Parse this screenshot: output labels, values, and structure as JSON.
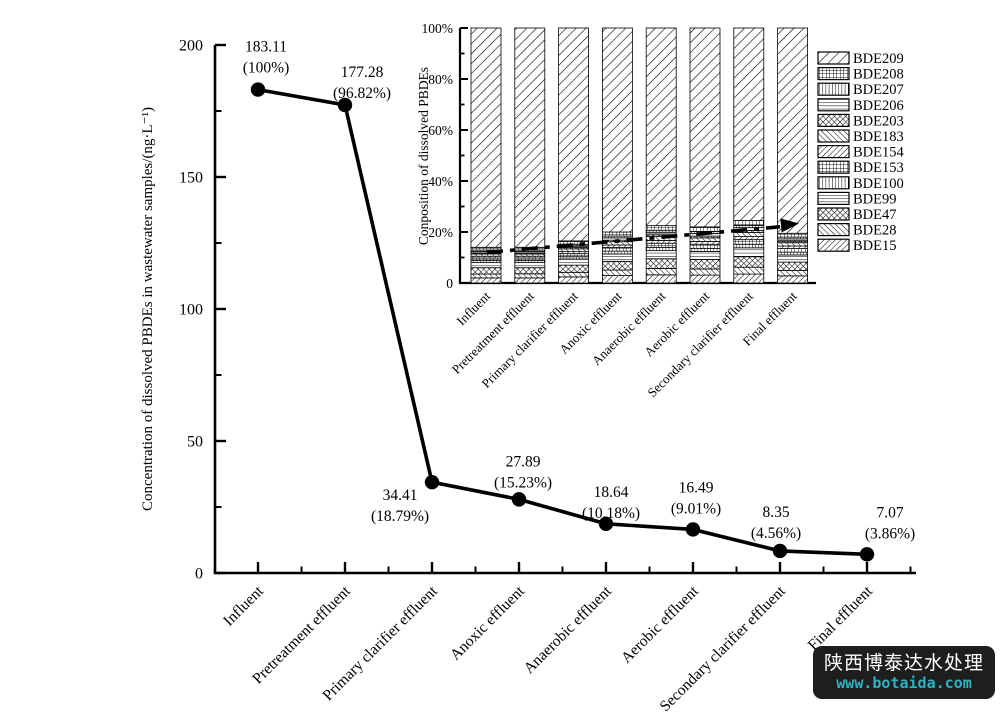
{
  "watermark": {
    "text": "陕西博泰达水处理",
    "url": "www.botaida.com",
    "background": "#1e1e1e",
    "text_color": "#ffffff",
    "url_color": "#2bb5c4"
  },
  "chart_data": [
    {
      "type": "line",
      "title": "",
      "ylabel": "Concentration of dissolved PBDEs in wastewater samples/(ng·L⁻¹)",
      "xlabel": "",
      "ylim": [
        0,
        200
      ],
      "yticks": [
        0,
        50,
        100,
        150,
        200
      ],
      "minor_ytick_step": 25,
      "grid": false,
      "line_color": "#000000",
      "marker": "filled-circle",
      "categories": [
        "Influent",
        "Pretreatment effluent",
        "Primary clarifier effluent",
        "Anoxic effluent",
        "Anaerobic effluent",
        "Aerobic effluent",
        "Secondary clarifier effluent",
        "Final effluent"
      ],
      "values": [
        183.11,
        177.28,
        34.41,
        27.89,
        18.64,
        16.49,
        8.35,
        7.07
      ],
      "point_labels": [
        {
          "value": "183.11",
          "percent": "(100%)"
        },
        {
          "value": "177.28",
          "percent": "(96.82%)"
        },
        {
          "value": "34.41",
          "percent": "(18.79%)"
        },
        {
          "value": "27.89",
          "percent": "(15.23%)"
        },
        {
          "value": "18.64",
          "percent": "(10.18%)"
        },
        {
          "value": "16.49",
          "percent": "(9.01%)"
        },
        {
          "value": "8.35",
          "percent": "(4.56%)"
        },
        {
          "value": "7.07",
          "percent": "(3.86%)"
        }
      ]
    },
    {
      "type": "stacked-bar-percent",
      "title": "",
      "ylabel": "Conposition of dissolved PBDEs",
      "ylim_percent": [
        0,
        100
      ],
      "ytick_labels": [
        "0",
        "20%",
        "40%",
        "60%",
        "80%",
        "100%"
      ],
      "minor_ytick_step_percent": 10,
      "grid": false,
      "bar_fill": "black-hatch-patterns-on-white",
      "categories": [
        "Influent",
        "Pretreatment effluent",
        "Primary clarifier effluent",
        "Anoxic effluent",
        "Anaerobic effluent",
        "Aerobic effluent",
        "Secondary clarifier effluent",
        "Final effluent"
      ],
      "series": [
        {
          "name": "BDE15",
          "hatch": "diag",
          "values": [
            2.0,
            2.0,
            2.4,
            2.9,
            3.2,
            3.1,
            3.5,
            2.8
          ]
        },
        {
          "name": "BDE28",
          "hatch": "rdiag",
          "values": [
            1.5,
            1.6,
            1.8,
            2.2,
            2.5,
            2.4,
            2.7,
            2.1
          ]
        },
        {
          "name": "BDE47",
          "hatch": "checker",
          "values": [
            2.5,
            2.4,
            2.8,
            3.4,
            3.8,
            3.7,
            4.1,
            3.3
          ]
        },
        {
          "name": "BDE99",
          "hatch": "horiz",
          "values": [
            2.0,
            2.0,
            2.4,
            2.9,
            3.2,
            3.2,
            3.5,
            2.8
          ]
        },
        {
          "name": "BDE100",
          "hatch": "vert",
          "values": [
            0.8,
            0.8,
            0.9,
            1.1,
            1.3,
            1.2,
            1.4,
            1.1
          ]
        },
        {
          "name": "BDE153",
          "hatch": "grid",
          "values": [
            1.0,
            1.0,
            1.2,
            1.4,
            1.6,
            1.6,
            1.8,
            1.4
          ]
        },
        {
          "name": "BDE154",
          "hatch": "diag",
          "values": [
            0.7,
            0.7,
            0.8,
            1.0,
            1.1,
            1.1,
            1.2,
            1.0
          ]
        },
        {
          "name": "BDE183",
          "hatch": "rdiag",
          "values": [
            0.9,
            0.9,
            1.1,
            1.3,
            1.5,
            1.4,
            1.6,
            1.3
          ]
        },
        {
          "name": "BDE203",
          "hatch": "checker",
          "values": [
            0.4,
            0.4,
            0.5,
            0.6,
            0.7,
            0.7,
            0.8,
            0.6
          ]
        },
        {
          "name": "BDE206",
          "hatch": "horiz",
          "values": [
            0.6,
            0.6,
            0.7,
            0.9,
            1.0,
            1.0,
            1.1,
            0.9
          ]
        },
        {
          "name": "BDE207",
          "hatch": "vert",
          "values": [
            0.5,
            0.5,
            0.6,
            0.7,
            0.8,
            0.8,
            0.9,
            0.7
          ]
        },
        {
          "name": "BDE208",
          "hatch": "grid",
          "values": [
            1.1,
            1.1,
            1.3,
            1.6,
            1.8,
            1.8,
            1.9,
            1.5
          ]
        },
        {
          "name": "BDE209",
          "hatch": "diag-wide",
          "values": [
            86.0,
            86.0,
            83.5,
            80.0,
            77.5,
            78.0,
            75.5,
            80.5
          ]
        }
      ],
      "legend": {
        "position": "right",
        "entries_top_to_bottom": [
          "BDE209",
          "BDE208",
          "BDE207",
          "BDE206",
          "BDE203",
          "BDE183",
          "BDE154",
          "BDE153",
          "BDE100",
          "BDE99",
          "BDE47",
          "BDE28",
          "BDE15"
        ]
      },
      "annotation_arrow": {
        "style": "dashed",
        "from_percent": 12,
        "to_percent": 23,
        "direction": "up-right"
      }
    }
  ]
}
